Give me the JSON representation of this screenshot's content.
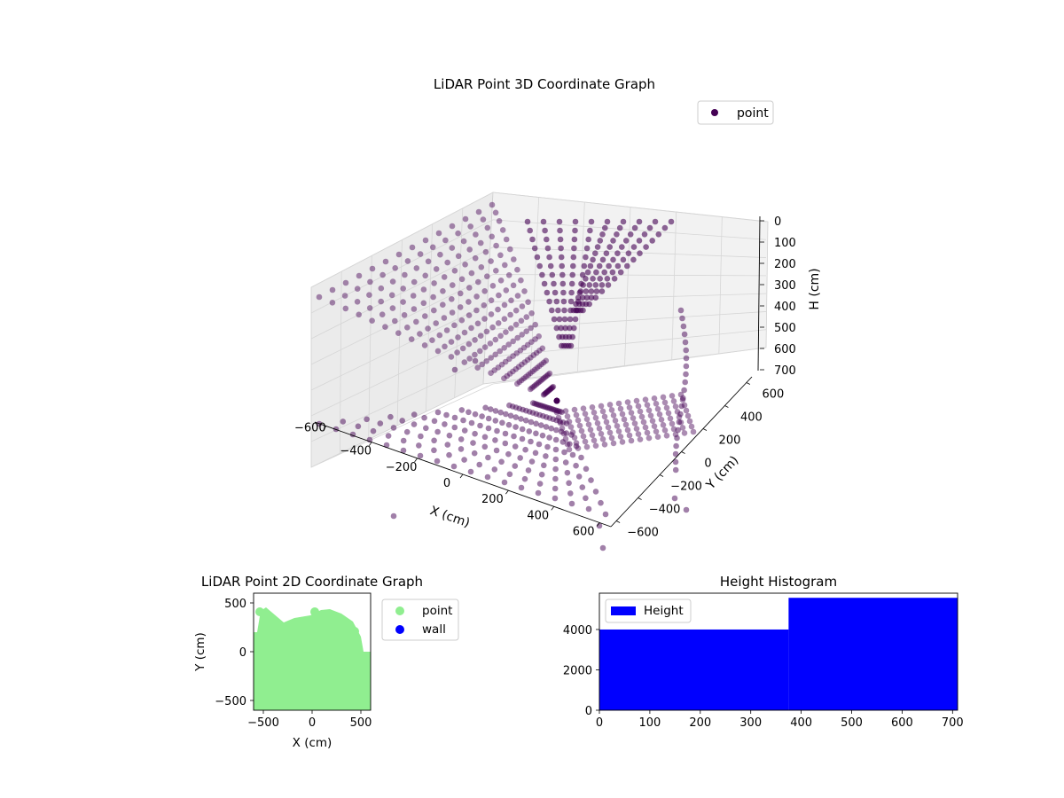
{
  "chart_data": [
    {
      "type": "scatter",
      "projection": "3d",
      "title": "LiDAR Point 3D Coordinate Graph",
      "xlabel": "X (cm)",
      "ylabel": "Y (cm)",
      "zlabel": "H (cm)",
      "x_ticks": [
        "−600",
        "−400",
        "−200",
        "0",
        "200",
        "400",
        "600"
      ],
      "y_ticks": [
        "−600",
        "−400",
        "−200",
        "0",
        "200",
        "400",
        "600"
      ],
      "z_ticks": [
        "0",
        "100",
        "200",
        "300",
        "400",
        "500",
        "600",
        "700"
      ],
      "xlim": [
        -650,
        650
      ],
      "ylim": [
        -650,
        650
      ],
      "zlim": [
        0,
        710
      ],
      "z_inverted": true,
      "grid": true,
      "legend": {
        "placement": "top-right",
        "entries": [
          "point"
        ]
      },
      "series": [
        {
          "name": "point",
          "color": "#440154"
        }
      ]
    },
    {
      "type": "scatter",
      "title": "LiDAR Point 2D Coordinate Graph",
      "xlabel": "X (cm)",
      "ylabel": "Y (cm)",
      "x_ticks": [
        "−500",
        "0",
        "500"
      ],
      "y_ticks": [
        "−500",
        "0",
        "500"
      ],
      "xlim": [
        -600,
        600
      ],
      "ylim": [
        -600,
        600
      ],
      "legend": {
        "placement": "outside-right",
        "entries": [
          "point",
          "wall"
        ]
      },
      "series": [
        {
          "name": "point",
          "color": "#90ee90"
        },
        {
          "name": "wall",
          "color": "#0000ff"
        }
      ]
    },
    {
      "type": "bar",
      "title": "Height Histogram",
      "xlabel": "",
      "ylabel": "",
      "x_ticks": [
        "0",
        "100",
        "200",
        "300",
        "400",
        "500",
        "600",
        "700"
      ],
      "y_ticks": [
        "0",
        "2000",
        "4000"
      ],
      "xlim": [
        0,
        710
      ],
      "ylim": [
        0,
        5800
      ],
      "bins": [
        {
          "x0": 0,
          "x1": 375,
          "count": 4000
        },
        {
          "x0": 375,
          "x1": 710,
          "count": 5570
        }
      ],
      "legend": {
        "placement": "top-left",
        "entries": [
          "Height"
        ]
      },
      "series": [
        {
          "name": "Height",
          "color": "#0000ff"
        }
      ]
    }
  ]
}
